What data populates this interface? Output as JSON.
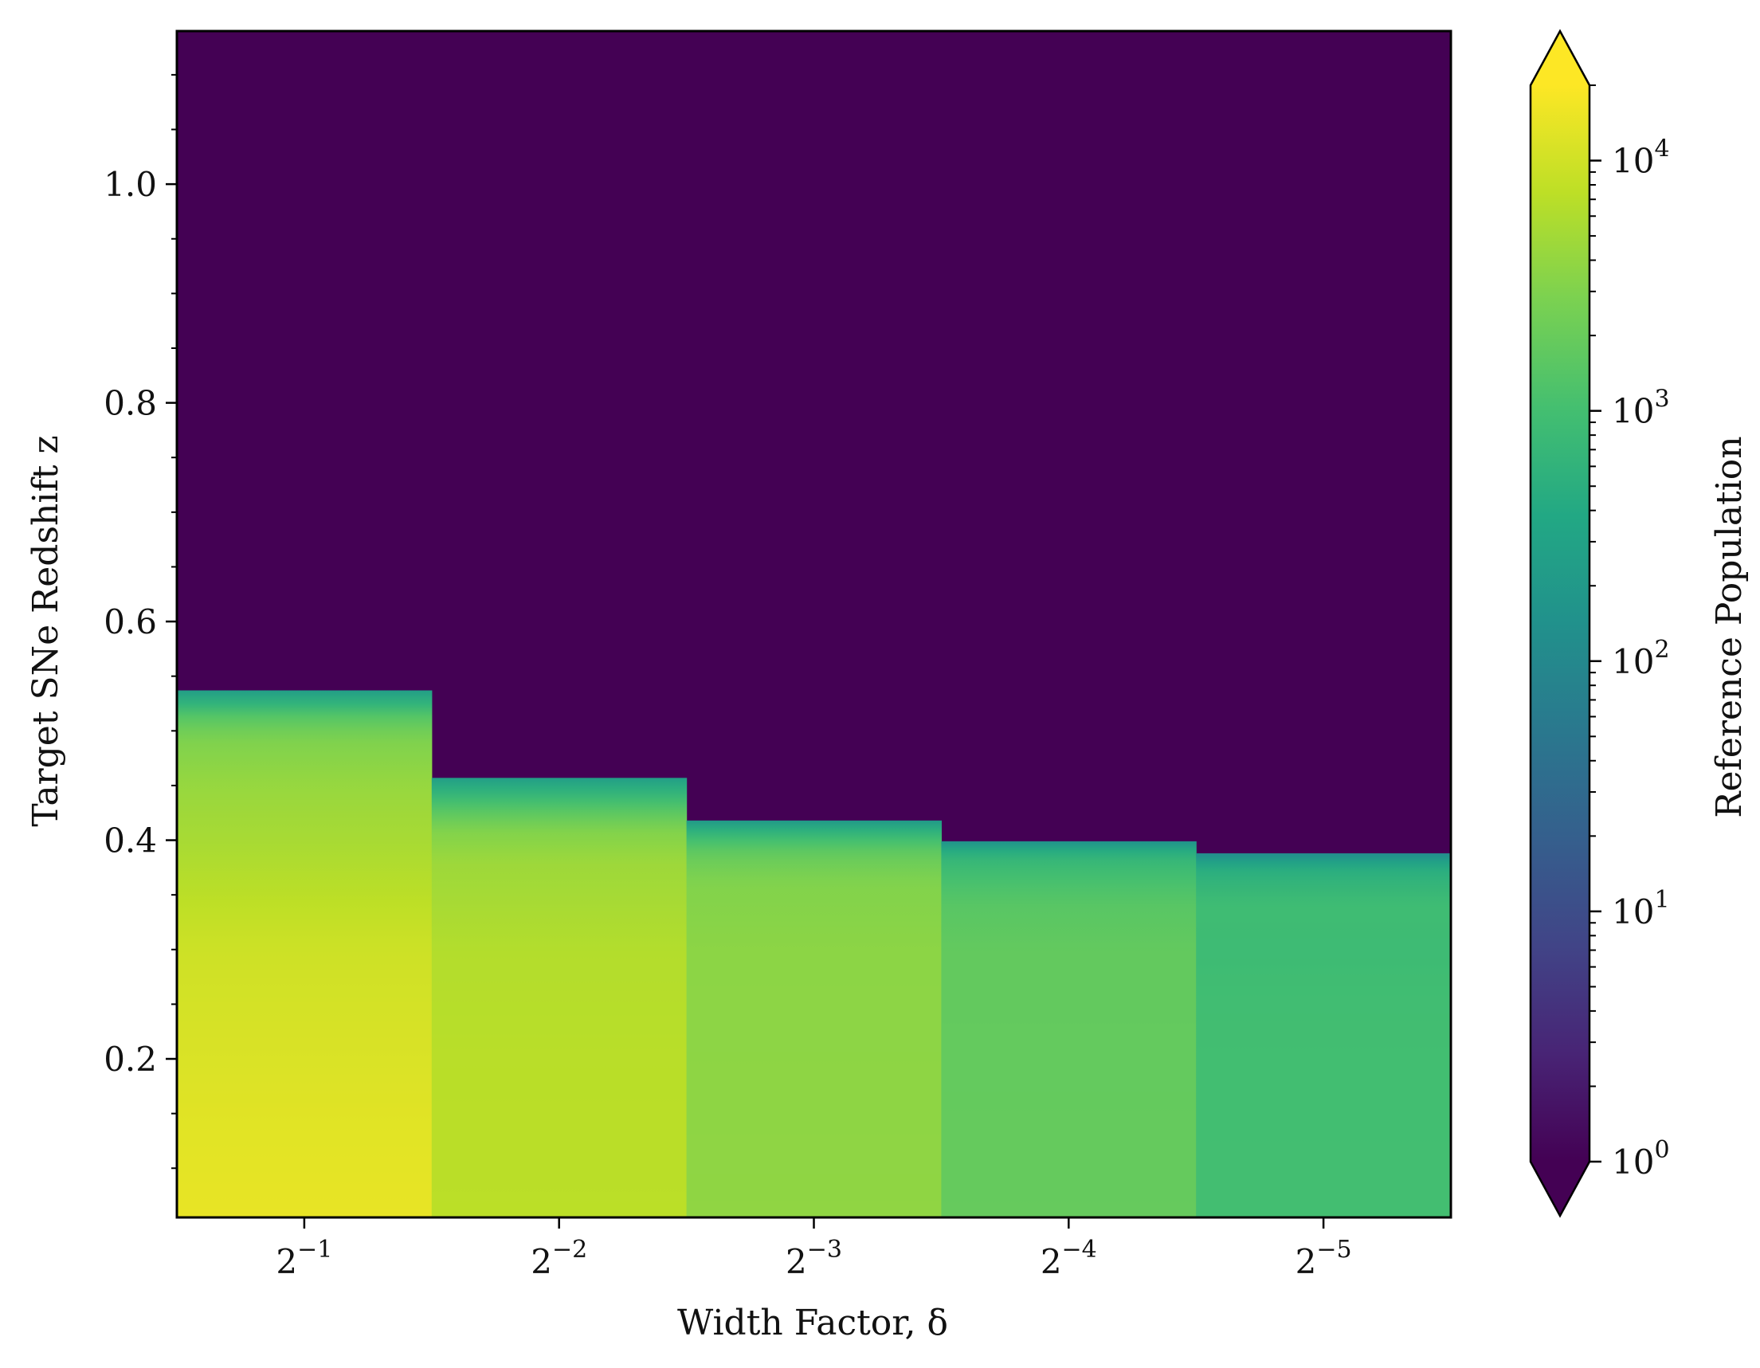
{
  "chart_data": {
    "type": "heatmap",
    "title": "",
    "xlabel": "Width Factor, δ",
    "ylabel": "Target SNe Redshift z",
    "x_tick_labels": [
      {
        "base": "2",
        "exp": "−1"
      },
      {
        "base": "2",
        "exp": "−2"
      },
      {
        "base": "2",
        "exp": "−3"
      },
      {
        "base": "2",
        "exp": "−4"
      },
      {
        "base": "2",
        "exp": "−5"
      }
    ],
    "y_ticks": [
      0.2,
      0.4,
      0.6,
      0.8,
      1.0
    ],
    "y_tick_labels": [
      "0.2",
      "0.4",
      "0.6",
      "0.8",
      "1.0"
    ],
    "ylim": [
      0.055,
      1.14
    ],
    "colorbar": {
      "label": "Reference Population",
      "scale": "log",
      "range": [
        1,
        20000
      ],
      "colormap": "viridis",
      "extend": "both",
      "ticks": [
        {
          "value": 1,
          "base": "10",
          "exp": "0"
        },
        {
          "value": 10,
          "base": "10",
          "exp": "1"
        },
        {
          "value": 100,
          "base": "10",
          "exp": "2"
        },
        {
          "value": 1000,
          "base": "10",
          "exp": "3"
        },
        {
          "value": 10000,
          "base": "10",
          "exp": "4"
        }
      ]
    },
    "background_value": 1,
    "columns": [
      {
        "delta": "2^-1",
        "z_max": 0.537,
        "profile": [
          [
            0.055,
            14500
          ],
          [
            0.15,
            12800
          ],
          [
            0.3,
            9500
          ],
          [
            0.4,
            5400
          ],
          [
            0.45,
            4200
          ],
          [
            0.49,
            3000
          ],
          [
            0.51,
            1700
          ],
          [
            0.525,
            600
          ],
          [
            0.537,
            250
          ]
        ]
      },
      {
        "delta": "2^-2",
        "z_max": 0.457,
        "profile": [
          [
            0.055,
            7200
          ],
          [
            0.2,
            7000
          ],
          [
            0.3,
            6400
          ],
          [
            0.38,
            4600
          ],
          [
            0.41,
            3000
          ],
          [
            0.43,
            1300
          ],
          [
            0.445,
            600
          ],
          [
            0.457,
            250
          ]
        ]
      },
      {
        "delta": "2^-3",
        "z_max": 0.418,
        "profile": [
          [
            0.055,
            3800
          ],
          [
            0.3,
            3600
          ],
          [
            0.36,
            3100
          ],
          [
            0.38,
            2200
          ],
          [
            0.395,
            1400
          ],
          [
            0.408,
            600
          ],
          [
            0.418,
            200
          ]
        ]
      },
      {
        "delta": "2^-4",
        "z_max": 0.399,
        "profile": [
          [
            0.055,
            1900
          ],
          [
            0.3,
            1800
          ],
          [
            0.34,
            1500
          ],
          [
            0.36,
            1150
          ],
          [
            0.38,
            750
          ],
          [
            0.392,
            400
          ],
          [
            0.399,
            150
          ]
        ]
      },
      {
        "delta": "2^-5",
        "z_max": 0.388,
        "profile": [
          [
            0.055,
            1000
          ],
          [
            0.25,
            950
          ],
          [
            0.3,
            850
          ],
          [
            0.34,
            900
          ],
          [
            0.36,
            650
          ],
          [
            0.375,
            450
          ],
          [
            0.383,
            220
          ],
          [
            0.388,
            110
          ]
        ]
      }
    ],
    "grid": false
  }
}
